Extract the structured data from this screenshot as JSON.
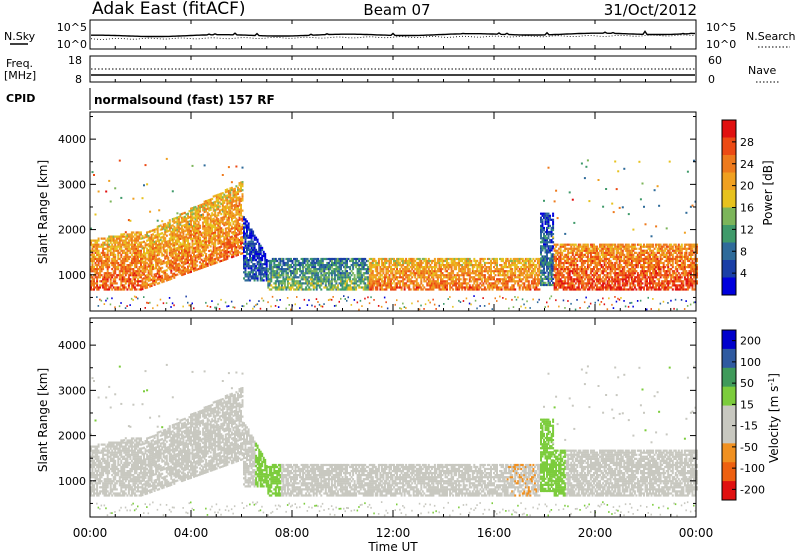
{
  "header": {
    "station": "Adak East (fitACF)",
    "beam": "Beam 07",
    "date": "31/Oct/2012"
  },
  "noise_panel": {
    "left_label": "N.Sky",
    "left_ticks": [
      "10^5",
      "10^0"
    ],
    "right_ticks": [
      "10^5",
      "10^0"
    ],
    "right_label": "N.Search"
  },
  "freq_panel": {
    "left_label_line1": "Freq.",
    "left_label_line2": "[MHz]",
    "left_ticks": [
      "18",
      "8"
    ],
    "right_ticks": [
      "60",
      "0"
    ],
    "right_label": "Nave"
  },
  "cpid_panel": {
    "label": "CPID",
    "text": "normalsound (fast) 157 RF"
  },
  "colors": {
    "power_scale": [
      "#0000dd",
      "#1a3fa6",
      "#2f6b9a",
      "#3f9a6a",
      "#7cb55a",
      "#e7c21e",
      "#f0a020",
      "#ee7a1c",
      "#ec4a14",
      "#e01010"
    ],
    "velocity_scale": [
      "#e01010",
      "#ee6010",
      "#f09020",
      "#c8c8c0",
      "#c8c8c0",
      "#7ccc3c",
      "#3f9a5a",
      "#2f5aa0",
      "#0000cc"
    ]
  },
  "chart_data": [
    {
      "type": "heatmap",
      "name": "power",
      "ylabel": "Slant Range [km]",
      "yticks": [
        "1000",
        "2000",
        "3000",
        "4000"
      ],
      "ylim": [
        200,
        4600
      ],
      "colorbar_label": "Power [dB]",
      "colorbar_ticks": [
        "4",
        "8",
        "12",
        "16",
        "20",
        "24",
        "28"
      ]
    },
    {
      "type": "heatmap",
      "name": "velocity",
      "ylabel": "Slant Range [km]",
      "yticks": [
        "1000",
        "2000",
        "3000",
        "4000"
      ],
      "ylim": [
        200,
        4600
      ],
      "colorbar_label": "Velocity [m s^-1]",
      "colorbar_ticks": [
        "200",
        "100",
        "50",
        "15",
        "-15",
        "-50",
        "-100",
        "-200"
      ]
    }
  ],
  "xaxis": {
    "ticks": [
      "00:00",
      "04:00",
      "08:00",
      "12:00",
      "16:00",
      "20:00",
      "00:00"
    ],
    "label": "Time UT"
  }
}
